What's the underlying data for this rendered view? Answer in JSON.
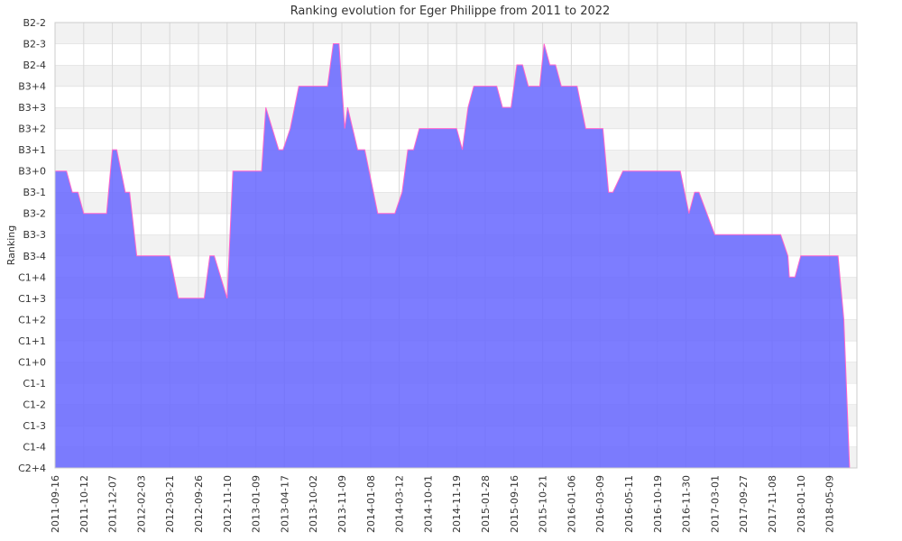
{
  "chart_data": {
    "type": "area",
    "title": "Ranking evolution for Eger Philippe from 2011 to 2022",
    "xlabel": "",
    "ylabel": "Ranking",
    "y_categories": [
      "C2+4",
      "C1-4",
      "C1-3",
      "C1-2",
      "C1-1",
      "C1+0",
      "C1+1",
      "C1+2",
      "C1+3",
      "C1+4",
      "B3-4",
      "B3-3",
      "B3-2",
      "B3-1",
      "B3+0",
      "B3+1",
      "B3+2",
      "B3+3",
      "B3+4",
      "B2-4",
      "B2-3",
      "B2-2"
    ],
    "x_tick_labels": [
      "2011-09-16",
      "2011-10-12",
      "2011-12-07",
      "2012-02-03",
      "2012-03-21",
      "2012-09-26",
      "2012-11-10",
      "2013-01-09",
      "2013-04-17",
      "2013-10-02",
      "2013-11-09",
      "2014-01-08",
      "2014-03-12",
      "2014-10-01",
      "2014-11-19",
      "2015-01-28",
      "2015-09-16",
      "2015-10-21",
      "2016-01-06",
      "2016-03-09",
      "2016-05-11",
      "2016-10-19",
      "2016-11-30",
      "2017-03-01",
      "2017-09-27",
      "2017-11-08",
      "2018-01-10",
      "2018-05-09"
    ],
    "grid": true,
    "colors": {
      "fill": "#6666ff",
      "line": "#ff66cc",
      "band": "#f2f2f2",
      "grid": "#d9d9d9"
    },
    "series": [
      {
        "values": [
          [
            0,
            "B3+0"
          ],
          [
            0.4,
            "B3+0"
          ],
          [
            0.6,
            "B3-1"
          ],
          [
            0.8,
            "B3-1"
          ],
          [
            1,
            "B3-2"
          ],
          [
            1.8,
            "B3-2"
          ],
          [
            2,
            "B3+1"
          ],
          [
            2.15,
            "B3+1"
          ],
          [
            2.45,
            "B3-1"
          ],
          [
            2.6,
            "B3-1"
          ],
          [
            2.85,
            "B3-4"
          ],
          [
            4,
            "B3-4"
          ],
          [
            4.3,
            "C1+3"
          ],
          [
            5.2,
            "C1+3"
          ],
          [
            5.4,
            "B3-4"
          ],
          [
            5.55,
            "B3-4"
          ],
          [
            6,
            "C1+3"
          ],
          [
            6.2,
            "B3+0"
          ],
          [
            7.2,
            "B3+0"
          ],
          [
            7.35,
            "B3+3"
          ],
          [
            7.8,
            "B3+1"
          ],
          [
            7.95,
            "B3+1"
          ],
          [
            8.2,
            "B3+2"
          ],
          [
            8.5,
            "B3+4"
          ],
          [
            9.5,
            "B3+4"
          ],
          [
            9.7,
            "B2-3"
          ],
          [
            9.9,
            "B2-3"
          ],
          [
            10.1,
            "B3+2"
          ],
          [
            10.2,
            "B3+3"
          ],
          [
            10.55,
            "B3+1"
          ],
          [
            10.8,
            "B3+1"
          ],
          [
            11.25,
            "B3-2"
          ],
          [
            11.85,
            "B3-2"
          ],
          [
            12.1,
            "B3-1"
          ],
          [
            12.3,
            "B3+1"
          ],
          [
            12.5,
            "B3+1"
          ],
          [
            12.7,
            "B3+2"
          ],
          [
            14,
            "B3+2"
          ],
          [
            14.2,
            "B3+1"
          ],
          [
            14.4,
            "B3+3"
          ],
          [
            14.6,
            "B3+4"
          ],
          [
            15.4,
            "B3+4"
          ],
          [
            15.6,
            "B3+3"
          ],
          [
            15.9,
            "B3+3"
          ],
          [
            16.1,
            "B2-4"
          ],
          [
            16.3,
            "B2-4"
          ],
          [
            16.5,
            "B3+4"
          ],
          [
            16.9,
            "B3+4"
          ],
          [
            17.05,
            "B2-3"
          ],
          [
            17.25,
            "B2-4"
          ],
          [
            17.45,
            "B2-4"
          ],
          [
            17.65,
            "B3+4"
          ],
          [
            18.2,
            "B3+4"
          ],
          [
            18.5,
            "B3+2"
          ],
          [
            19.1,
            "B3+2"
          ],
          [
            19.3,
            "B3-1"
          ],
          [
            19.45,
            "B3-1"
          ],
          [
            19.8,
            "B3+0"
          ],
          [
            21.8,
            "B3+0"
          ],
          [
            22.1,
            "B3-2"
          ],
          [
            22.3,
            "B3-1"
          ],
          [
            22.45,
            "B3-1"
          ],
          [
            23,
            "B3-3"
          ],
          [
            25.3,
            "B3-3"
          ],
          [
            25.55,
            "B3-4"
          ],
          [
            25.6,
            "C1+4"
          ],
          [
            25.8,
            "C1+4"
          ],
          [
            26,
            "B3-4"
          ],
          [
            27.3,
            "B3-4"
          ],
          [
            27.5,
            "C1+2"
          ],
          [
            27.7,
            "C2+4"
          ]
        ]
      }
    ]
  }
}
